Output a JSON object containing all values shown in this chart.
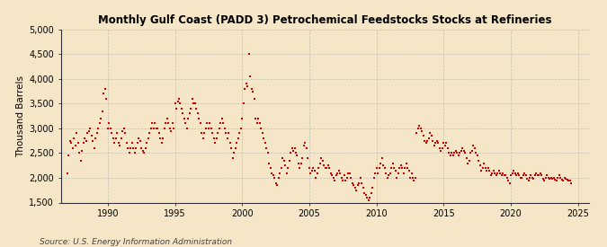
{
  "title": "Monthly Gulf Coast (PADD 3) Petrochemical Feedstocks Stocks at Refineries",
  "ylabel": "Thousand Barrels",
  "source_text": "Source: U.S. Energy Information Administration",
  "background_color": "#f5e6c8",
  "dot_color": "#cc0000",
  "dot_size": 3,
  "ylim": [
    1500,
    5000
  ],
  "yticks": [
    1500,
    2000,
    2500,
    3000,
    3500,
    4000,
    4500,
    5000
  ],
  "ytick_labels": [
    "1,500",
    "2,000",
    "2,500",
    "3,000",
    "3,500",
    "4,000",
    "4,500",
    "5,000"
  ],
  "xlim_start": 1986.5,
  "xlim_end": 2025.8,
  "xticks": [
    1990,
    1995,
    2000,
    2005,
    2010,
    2015,
    2020,
    2025
  ],
  "data": [
    [
      1987.0,
      2100
    ],
    [
      1987.1,
      2450
    ],
    [
      1987.2,
      2750
    ],
    [
      1987.3,
      2700
    ],
    [
      1987.4,
      2600
    ],
    [
      1987.5,
      2800
    ],
    [
      1987.6,
      2650
    ],
    [
      1987.7,
      2900
    ],
    [
      1987.8,
      2700
    ],
    [
      1987.9,
      2500
    ],
    [
      1988.0,
      2350
    ],
    [
      1988.1,
      2550
    ],
    [
      1988.2,
      2700
    ],
    [
      1988.3,
      2800
    ],
    [
      1988.4,
      2750
    ],
    [
      1988.5,
      2900
    ],
    [
      1988.6,
      2950
    ],
    [
      1988.7,
      3000
    ],
    [
      1988.8,
      2850
    ],
    [
      1988.9,
      2750
    ],
    [
      1989.0,
      2600
    ],
    [
      1989.1,
      2800
    ],
    [
      1989.2,
      2900
    ],
    [
      1989.3,
      3000
    ],
    [
      1989.4,
      3100
    ],
    [
      1989.5,
      3200
    ],
    [
      1989.6,
      3350
    ],
    [
      1989.7,
      3700
    ],
    [
      1989.8,
      3800
    ],
    [
      1989.9,
      3600
    ],
    [
      1990.0,
      3000
    ],
    [
      1990.1,
      3100
    ],
    [
      1990.2,
      3000
    ],
    [
      1990.3,
      2900
    ],
    [
      1990.4,
      2800
    ],
    [
      1990.5,
      2700
    ],
    [
      1990.6,
      2800
    ],
    [
      1990.7,
      2900
    ],
    [
      1990.8,
      2700
    ],
    [
      1990.9,
      2650
    ],
    [
      1991.0,
      2800
    ],
    [
      1991.1,
      2950
    ],
    [
      1991.2,
      3000
    ],
    [
      1991.3,
      2900
    ],
    [
      1991.4,
      2700
    ],
    [
      1991.5,
      2600
    ],
    [
      1991.6,
      2500
    ],
    [
      1991.7,
      2600
    ],
    [
      1991.8,
      2700
    ],
    [
      1991.9,
      2600
    ],
    [
      1992.0,
      2500
    ],
    [
      1992.1,
      2600
    ],
    [
      1992.2,
      2700
    ],
    [
      1992.3,
      2800
    ],
    [
      1992.4,
      2750
    ],
    [
      1992.5,
      2600
    ],
    [
      1992.6,
      2550
    ],
    [
      1992.7,
      2500
    ],
    [
      1992.8,
      2600
    ],
    [
      1992.9,
      2700
    ],
    [
      1993.0,
      2800
    ],
    [
      1993.1,
      2900
    ],
    [
      1993.2,
      3000
    ],
    [
      1993.3,
      3100
    ],
    [
      1993.4,
      3000
    ],
    [
      1993.5,
      3100
    ],
    [
      1993.6,
      3000
    ],
    [
      1993.7,
      3000
    ],
    [
      1993.8,
      2900
    ],
    [
      1993.9,
      2800
    ],
    [
      1994.0,
      2700
    ],
    [
      1994.1,
      2800
    ],
    [
      1994.2,
      3000
    ],
    [
      1994.3,
      3100
    ],
    [
      1994.4,
      3200
    ],
    [
      1994.5,
      3100
    ],
    [
      1994.6,
      3000
    ],
    [
      1994.7,
      2950
    ],
    [
      1994.8,
      3100
    ],
    [
      1994.9,
      3000
    ],
    [
      1995.0,
      3500
    ],
    [
      1995.1,
      3400
    ],
    [
      1995.2,
      3550
    ],
    [
      1995.3,
      3600
    ],
    [
      1995.4,
      3500
    ],
    [
      1995.5,
      3400
    ],
    [
      1995.6,
      3300
    ],
    [
      1995.7,
      3200
    ],
    [
      1995.8,
      3100
    ],
    [
      1995.9,
      3000
    ],
    [
      1996.0,
      3200
    ],
    [
      1996.1,
      3300
    ],
    [
      1996.2,
      3400
    ],
    [
      1996.3,
      3600
    ],
    [
      1996.4,
      3500
    ],
    [
      1996.5,
      3500
    ],
    [
      1996.6,
      3400
    ],
    [
      1996.7,
      3300
    ],
    [
      1996.8,
      3200
    ],
    [
      1996.9,
      3100
    ],
    [
      1997.0,
      2900
    ],
    [
      1997.1,
      2800
    ],
    [
      1997.2,
      2900
    ],
    [
      1997.3,
      3000
    ],
    [
      1997.4,
      3100
    ],
    [
      1997.5,
      3000
    ],
    [
      1997.6,
      3100
    ],
    [
      1997.7,
      3000
    ],
    [
      1997.8,
      2900
    ],
    [
      1997.9,
      2800
    ],
    [
      1998.0,
      2700
    ],
    [
      1998.1,
      2800
    ],
    [
      1998.2,
      2900
    ],
    [
      1998.3,
      3000
    ],
    [
      1998.4,
      3100
    ],
    [
      1998.5,
      3200
    ],
    [
      1998.6,
      3100
    ],
    [
      1998.7,
      3000
    ],
    [
      1998.8,
      2900
    ],
    [
      1998.9,
      2800
    ],
    [
      1999.0,
      2900
    ],
    [
      1999.1,
      2700
    ],
    [
      1999.2,
      2600
    ],
    [
      1999.3,
      2400
    ],
    [
      1999.4,
      2500
    ],
    [
      1999.5,
      2600
    ],
    [
      1999.6,
      2700
    ],
    [
      1999.7,
      2800
    ],
    [
      1999.8,
      2900
    ],
    [
      1999.9,
      3000
    ],
    [
      2000.0,
      3200
    ],
    [
      2000.1,
      3500
    ],
    [
      2000.2,
      3800
    ],
    [
      2000.3,
      3900
    ],
    [
      2000.4,
      3850
    ],
    [
      2000.5,
      4500
    ],
    [
      2000.6,
      4050
    ],
    [
      2000.7,
      3800
    ],
    [
      2000.8,
      3750
    ],
    [
      2000.9,
      3600
    ],
    [
      2001.0,
      3200
    ],
    [
      2001.1,
      3100
    ],
    [
      2001.2,
      3200
    ],
    [
      2001.3,
      3100
    ],
    [
      2001.4,
      3000
    ],
    [
      2001.5,
      2900
    ],
    [
      2001.6,
      2800
    ],
    [
      2001.7,
      2700
    ],
    [
      2001.8,
      2600
    ],
    [
      2001.9,
      2500
    ],
    [
      2002.0,
      2300
    ],
    [
      2002.1,
      2200
    ],
    [
      2002.2,
      2100
    ],
    [
      2002.3,
      2050
    ],
    [
      2002.4,
      2000
    ],
    [
      2002.5,
      1900
    ],
    [
      2002.6,
      1850
    ],
    [
      2002.7,
      2000
    ],
    [
      2002.8,
      2100
    ],
    [
      2002.9,
      2200
    ],
    [
      2003.0,
      2400
    ],
    [
      2003.1,
      2350
    ],
    [
      2003.2,
      2250
    ],
    [
      2003.3,
      2100
    ],
    [
      2003.4,
      2200
    ],
    [
      2003.5,
      2350
    ],
    [
      2003.6,
      2500
    ],
    [
      2003.7,
      2600
    ],
    [
      2003.8,
      2550
    ],
    [
      2003.9,
      2600
    ],
    [
      2004.0,
      2500
    ],
    [
      2004.1,
      2450
    ],
    [
      2004.2,
      2300
    ],
    [
      2004.3,
      2200
    ],
    [
      2004.4,
      2300
    ],
    [
      2004.5,
      2400
    ],
    [
      2004.6,
      2650
    ],
    [
      2004.7,
      2700
    ],
    [
      2004.8,
      2600
    ],
    [
      2004.9,
      2400
    ],
    [
      2005.0,
      2200
    ],
    [
      2005.1,
      2100
    ],
    [
      2005.2,
      2150
    ],
    [
      2005.3,
      2200
    ],
    [
      2005.4,
      2150
    ],
    [
      2005.5,
      2000
    ],
    [
      2005.6,
      2100
    ],
    [
      2005.7,
      2200
    ],
    [
      2005.8,
      2300
    ],
    [
      2005.9,
      2400
    ],
    [
      2006.0,
      2350
    ],
    [
      2006.1,
      2250
    ],
    [
      2006.2,
      2200
    ],
    [
      2006.3,
      2200
    ],
    [
      2006.4,
      2250
    ],
    [
      2006.5,
      2200
    ],
    [
      2006.6,
      2100
    ],
    [
      2006.7,
      2050
    ],
    [
      2006.8,
      2000
    ],
    [
      2006.9,
      1950
    ],
    [
      2007.0,
      2050
    ],
    [
      2007.1,
      2100
    ],
    [
      2007.2,
      2150
    ],
    [
      2007.3,
      2100
    ],
    [
      2007.4,
      2000
    ],
    [
      2007.5,
      1950
    ],
    [
      2007.6,
      2050
    ],
    [
      2007.7,
      1950
    ],
    [
      2007.8,
      2000
    ],
    [
      2007.9,
      2100
    ],
    [
      2008.0,
      2100
    ],
    [
      2008.1,
      2000
    ],
    [
      2008.2,
      1900
    ],
    [
      2008.3,
      1850
    ],
    [
      2008.4,
      1800
    ],
    [
      2008.5,
      1750
    ],
    [
      2008.6,
      1850
    ],
    [
      2008.7,
      1900
    ],
    [
      2008.8,
      2000
    ],
    [
      2008.9,
      1900
    ],
    [
      2009.0,
      1800
    ],
    [
      2009.1,
      1700
    ],
    [
      2009.2,
      1650
    ],
    [
      2009.3,
      1600
    ],
    [
      2009.4,
      1550
    ],
    [
      2009.5,
      1600
    ],
    [
      2009.6,
      1700
    ],
    [
      2009.7,
      1800
    ],
    [
      2009.8,
      2000
    ],
    [
      2009.9,
      2100
    ],
    [
      2010.0,
      2200
    ],
    [
      2010.1,
      2100
    ],
    [
      2010.2,
      2200
    ],
    [
      2010.3,
      2300
    ],
    [
      2010.4,
      2400
    ],
    [
      2010.5,
      2250
    ],
    [
      2010.6,
      2200
    ],
    [
      2010.7,
      2100
    ],
    [
      2010.8,
      2000
    ],
    [
      2010.9,
      2050
    ],
    [
      2011.0,
      2100
    ],
    [
      2011.1,
      2200
    ],
    [
      2011.2,
      2300
    ],
    [
      2011.3,
      2200
    ],
    [
      2011.4,
      2150
    ],
    [
      2011.5,
      2000
    ],
    [
      2011.6,
      2100
    ],
    [
      2011.7,
      2200
    ],
    [
      2011.8,
      2250
    ],
    [
      2011.9,
      2200
    ],
    [
      2012.0,
      2100
    ],
    [
      2012.1,
      2200
    ],
    [
      2012.2,
      2300
    ],
    [
      2012.3,
      2200
    ],
    [
      2012.4,
      2150
    ],
    [
      2012.5,
      2000
    ],
    [
      2012.6,
      2100
    ],
    [
      2012.7,
      2000
    ],
    [
      2012.8,
      1950
    ],
    [
      2012.9,
      2000
    ],
    [
      2013.0,
      2900
    ],
    [
      2013.1,
      3000
    ],
    [
      2013.2,
      3050
    ],
    [
      2013.3,
      3000
    ],
    [
      2013.4,
      2950
    ],
    [
      2013.5,
      2850
    ],
    [
      2013.6,
      2750
    ],
    [
      2013.7,
      2700
    ],
    [
      2013.8,
      2750
    ],
    [
      2013.9,
      2800
    ],
    [
      2014.0,
      2900
    ],
    [
      2014.1,
      2850
    ],
    [
      2014.2,
      2750
    ],
    [
      2014.3,
      2650
    ],
    [
      2014.4,
      2700
    ],
    [
      2014.5,
      2750
    ],
    [
      2014.6,
      2700
    ],
    [
      2014.7,
      2600
    ],
    [
      2014.8,
      2550
    ],
    [
      2014.9,
      2600
    ],
    [
      2015.0,
      2700
    ],
    [
      2015.1,
      2650
    ],
    [
      2015.2,
      2700
    ],
    [
      2015.3,
      2600
    ],
    [
      2015.4,
      2500
    ],
    [
      2015.5,
      2450
    ],
    [
      2015.6,
      2500
    ],
    [
      2015.7,
      2450
    ],
    [
      2015.8,
      2500
    ],
    [
      2015.9,
      2550
    ],
    [
      2016.0,
      2500
    ],
    [
      2016.1,
      2450
    ],
    [
      2016.2,
      2500
    ],
    [
      2016.3,
      2550
    ],
    [
      2016.4,
      2600
    ],
    [
      2016.5,
      2550
    ],
    [
      2016.6,
      2500
    ],
    [
      2016.7,
      2400
    ],
    [
      2016.8,
      2300
    ],
    [
      2016.9,
      2350
    ],
    [
      2017.0,
      2500
    ],
    [
      2017.1,
      2550
    ],
    [
      2017.2,
      2650
    ],
    [
      2017.3,
      2600
    ],
    [
      2017.4,
      2500
    ],
    [
      2017.5,
      2450
    ],
    [
      2017.6,
      2350
    ],
    [
      2017.7,
      2250
    ],
    [
      2017.8,
      2150
    ],
    [
      2017.9,
      2200
    ],
    [
      2018.0,
      2300
    ],
    [
      2018.1,
      2200
    ],
    [
      2018.2,
      2150
    ],
    [
      2018.3,
      2200
    ],
    [
      2018.4,
      2150
    ],
    [
      2018.5,
      2050
    ],
    [
      2018.6,
      2100
    ],
    [
      2018.7,
      2150
    ],
    [
      2018.8,
      2100
    ],
    [
      2018.9,
      2050
    ],
    [
      2019.0,
      2100
    ],
    [
      2019.1,
      2150
    ],
    [
      2019.2,
      2100
    ],
    [
      2019.3,
      2050
    ],
    [
      2019.4,
      2100
    ],
    [
      2019.5,
      2050
    ],
    [
      2019.6,
      2050
    ],
    [
      2019.7,
      2000
    ],
    [
      2019.8,
      1950
    ],
    [
      2019.9,
      1900
    ],
    [
      2020.0,
      2050
    ],
    [
      2020.1,
      2100
    ],
    [
      2020.2,
      2150
    ],
    [
      2020.3,
      2100
    ],
    [
      2020.4,
      2050
    ],
    [
      2020.5,
      2100
    ],
    [
      2020.6,
      2050
    ],
    [
      2020.7,
      2000
    ],
    [
      2020.8,
      2000
    ],
    [
      2020.9,
      2050
    ],
    [
      2021.0,
      2100
    ],
    [
      2021.1,
      2050
    ],
    [
      2021.2,
      1980
    ],
    [
      2021.3,
      1950
    ],
    [
      2021.4,
      2000
    ],
    [
      2021.5,
      2050
    ],
    [
      2021.6,
      2000
    ],
    [
      2021.7,
      1980
    ],
    [
      2021.8,
      2050
    ],
    [
      2021.9,
      2100
    ],
    [
      2022.0,
      2050
    ],
    [
      2022.1,
      2050
    ],
    [
      2022.2,
      2100
    ],
    [
      2022.3,
      2050
    ],
    [
      2022.4,
      1980
    ],
    [
      2022.5,
      1950
    ],
    [
      2022.6,
      2000
    ],
    [
      2022.7,
      2050
    ],
    [
      2022.8,
      2000
    ],
    [
      2022.9,
      1980
    ],
    [
      2023.0,
      2000
    ],
    [
      2023.1,
      1980
    ],
    [
      2023.2,
      2000
    ],
    [
      2023.3,
      1970
    ],
    [
      2023.4,
      1950
    ],
    [
      2023.5,
      2000
    ],
    [
      2023.6,
      2050
    ],
    [
      2023.7,
      2000
    ],
    [
      2023.8,
      1960
    ],
    [
      2023.9,
      1950
    ],
    [
      2024.0,
      2000
    ],
    [
      2024.1,
      1980
    ],
    [
      2024.2,
      1970
    ],
    [
      2024.3,
      1950
    ],
    [
      2024.4,
      1940
    ],
    [
      2024.5,
      1900
    ]
  ]
}
